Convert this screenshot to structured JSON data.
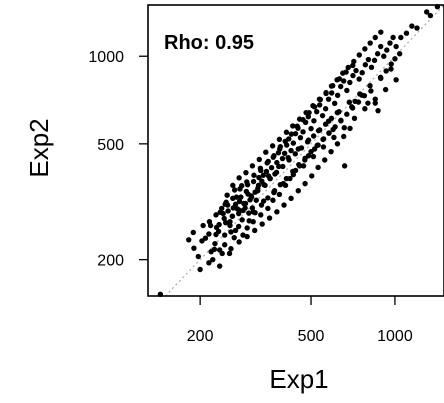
{
  "chart_data": {
    "type": "scatter",
    "xlabel": "Exp1",
    "ylabel": "Exp2",
    "x_scale": "log",
    "y_scale": "log",
    "xlim": [
      130,
      1500
    ],
    "ylim": [
      150,
      1500
    ],
    "x_ticks": [
      200,
      500,
      1000
    ],
    "y_ticks": [
      200,
      500,
      1000
    ],
    "x_tick_labels": [
      "200",
      "500",
      "1000"
    ],
    "y_tick_labels": [
      "200",
      "500",
      "1000"
    ],
    "annotation": "Rho: 0.95",
    "reference_line": "identity (y = x), dotted",
    "grid": false,
    "colors": {
      "points": "#000000",
      "reference_line": "#aaaaaa",
      "frame": "#000000"
    },
    "points": [
      [
        144,
        152
      ],
      [
        182,
        234
      ],
      [
        190,
        219
      ],
      [
        197,
        205
      ],
      [
        209,
        237
      ],
      [
        215,
        245
      ],
      [
        218,
        262
      ],
      [
        219,
        213
      ],
      [
        225,
        217
      ],
      [
        226,
        227
      ],
      [
        229,
        258
      ],
      [
        234,
        264
      ],
      [
        236,
        291
      ],
      [
        235,
        216
      ],
      [
        239,
        300
      ],
      [
        244,
        277
      ],
      [
        245,
        243
      ],
      [
        248,
        315
      ],
      [
        251,
        308
      ],
      [
        252,
        294
      ],
      [
        256,
        270
      ],
      [
        258,
        249
      ],
      [
        261,
        282
      ],
      [
        263,
        301
      ],
      [
        266,
        347
      ],
      [
        268,
        252
      ],
      [
        270,
        328
      ],
      [
        272,
        299
      ],
      [
        275,
        288
      ],
      [
        277,
        317
      ],
      [
        280,
        328
      ],
      [
        282,
        359
      ],
      [
        285,
        295
      ],
      [
        287,
        312
      ],
      [
        290,
        301
      ],
      [
        293,
        343
      ],
      [
        296,
        362
      ],
      [
        299,
        289
      ],
      [
        302,
        321
      ],
      [
        305,
        331
      ],
      [
        308,
        301
      ],
      [
        311,
        371
      ],
      [
        315,
        341
      ],
      [
        318,
        320
      ],
      [
        322,
        351
      ],
      [
        325,
        383
      ],
      [
        329,
        412
      ],
      [
        333,
        372
      ],
      [
        337,
        390
      ],
      [
        342,
        360
      ],
      [
        346,
        402
      ],
      [
        351,
        435
      ],
      [
        356,
        380
      ],
      [
        361,
        414
      ],
      [
        366,
        450
      ],
      [
        371,
        394
      ],
      [
        377,
        431
      ],
      [
        382,
        466
      ],
      [
        388,
        489
      ],
      [
        395,
        445
      ],
      [
        402,
        464
      ],
      [
        409,
        495
      ],
      [
        416,
        520
      ],
      [
        424,
        474
      ],
      [
        432,
        503
      ],
      [
        440,
        542
      ],
      [
        449,
        566
      ],
      [
        458,
        525
      ],
      [
        468,
        550
      ],
      [
        478,
        593
      ],
      [
        489,
        620
      ],
      [
        500,
        564
      ],
      [
        512,
        600
      ],
      [
        524,
        645
      ],
      [
        537,
        680
      ],
      [
        550,
        625
      ],
      [
        564,
        660
      ],
      [
        578,
        712
      ],
      [
        593,
        748
      ],
      [
        608,
        689
      ],
      [
        623,
        734
      ],
      [
        639,
        787
      ],
      [
        655,
        822
      ],
      [
        672,
        763
      ],
      [
        689,
        813
      ],
      [
        707,
        858
      ],
      [
        725,
        893
      ],
      [
        744,
        835
      ],
      [
        763,
        878
      ],
      [
        783,
        935
      ],
      [
        803,
        974
      ],
      [
        824,
        916
      ],
      [
        845,
        968
      ],
      [
        867,
        1020
      ],
      [
        889,
        1080
      ],
      [
        912,
        1000
      ],
      [
        935,
        1050
      ],
      [
        960,
        1110
      ],
      [
        985,
        1160
      ],
      [
        1010,
        1080
      ],
      [
        1050,
        1160
      ],
      [
        1100,
        1200
      ],
      [
        1150,
        1270
      ],
      [
        1200,
        1250
      ],
      [
        1300,
        1420
      ],
      [
        1340,
        1380
      ],
      [
        1420,
        1480
      ],
      [
        200,
        185
      ],
      [
        215,
        195
      ],
      [
        235,
        190
      ],
      [
        255,
        210
      ],
      [
        245,
        225
      ],
      [
        265,
        238
      ],
      [
        285,
        243
      ],
      [
        275,
        260
      ],
      [
        295,
        257
      ],
      [
        310,
        270
      ],
      [
        330,
        285
      ],
      [
        350,
        300
      ],
      [
        365,
        320
      ],
      [
        385,
        335
      ],
      [
        370,
        345
      ],
      [
        405,
        360
      ],
      [
        420,
        380
      ],
      [
        440,
        405
      ],
      [
        455,
        420
      ],
      [
        475,
        440
      ],
      [
        490,
        455
      ],
      [
        515,
        480
      ],
      [
        530,
        495
      ],
      [
        555,
        520
      ],
      [
        580,
        545
      ],
      [
        600,
        560
      ],
      [
        640,
        600
      ],
      [
        660,
        420
      ],
      [
        700,
        670
      ],
      [
        720,
        700
      ],
      [
        760,
        735
      ],
      [
        800,
        690
      ],
      [
        820,
        760
      ],
      [
        850,
        690
      ],
      [
        870,
        650
      ],
      [
        890,
        840
      ],
      [
        930,
        890
      ],
      [
        970,
        940
      ],
      [
        1000,
        980
      ],
      [
        1040,
        1020
      ],
      [
        205,
        262
      ],
      [
        228,
        285
      ],
      [
        246,
        310
      ],
      [
        262,
        325
      ],
      [
        278,
        350
      ],
      [
        294,
        370
      ],
      [
        312,
        390
      ],
      [
        330,
        405
      ],
      [
        348,
        430
      ],
      [
        368,
        455
      ],
      [
        386,
        480
      ],
      [
        404,
        510
      ],
      [
        425,
        540
      ],
      [
        446,
        575
      ],
      [
        468,
        605
      ],
      [
        492,
        640
      ],
      [
        515,
        670
      ],
      [
        540,
        710
      ],
      [
        566,
        745
      ],
      [
        592,
        790
      ],
      [
        620,
        830
      ],
      [
        650,
        875
      ],
      [
        680,
        915
      ],
      [
        712,
        960
      ],
      [
        745,
        1010
      ],
      [
        780,
        1060
      ],
      [
        815,
        1110
      ],
      [
        850,
        1160
      ],
      [
        890,
        1210
      ],
      [
        222,
        200
      ],
      [
        240,
        210
      ],
      [
        258,
        218
      ],
      [
        276,
        230
      ],
      [
        295,
        240
      ],
      [
        314,
        252
      ],
      [
        334,
        265
      ],
      [
        355,
        278
      ],
      [
        377,
        292
      ],
      [
        400,
        308
      ],
      [
        424,
        325
      ],
      [
        450,
        345
      ],
      [
        476,
        365
      ],
      [
        503,
        388
      ],
      [
        530,
        415
      ],
      [
        560,
        440
      ],
      [
        590,
        470
      ],
      [
        622,
        500
      ],
      [
        655,
        530
      ],
      [
        690,
        565
      ],
      [
        250,
        333
      ],
      [
        262,
        360
      ],
      [
        276,
        382
      ],
      [
        292,
        398
      ],
      [
        308,
        420
      ],
      [
        326,
        442
      ],
      [
        344,
        468
      ],
      [
        364,
        492
      ],
      [
        385,
        518
      ],
      [
        408,
        548
      ],
      [
        430,
        576
      ],
      [
        455,
        608
      ],
      [
        480,
        640
      ],
      [
        508,
        676
      ],
      [
        536,
        712
      ],
      [
        566,
        750
      ],
      [
        598,
        792
      ],
      [
        632,
        836
      ],
      [
        668,
        882
      ],
      [
        706,
        930
      ],
      [
        300,
        272
      ],
      [
        315,
        290
      ],
      [
        332,
        308
      ],
      [
        350,
        326
      ],
      [
        368,
        342
      ],
      [
        388,
        362
      ],
      [
        408,
        380
      ],
      [
        430,
        402
      ],
      [
        452,
        424
      ],
      [
        476,
        446
      ],
      [
        500,
        470
      ],
      [
        526,
        494
      ],
      [
        552,
        518
      ],
      [
        580,
        544
      ],
      [
        610,
        572
      ],
      [
        640,
        602
      ],
      [
        672,
        632
      ],
      [
        705,
        664
      ],
      [
        740,
        696
      ],
      [
        777,
        732
      ],
      [
        233,
        250
      ],
      [
        247,
        268
      ],
      [
        261,
        282
      ],
      [
        276,
        296
      ],
      [
        291,
        312
      ],
      [
        306,
        328
      ],
      [
        322,
        345
      ],
      [
        339,
        362
      ],
      [
        357,
        380
      ],
      [
        376,
        399
      ],
      [
        396,
        418
      ],
      [
        417,
        440
      ],
      [
        439,
        462
      ],
      [
        462,
        484
      ],
      [
        486,
        508
      ],
      [
        511,
        532
      ],
      [
        537,
        558
      ],
      [
        564,
        584
      ],
      [
        592,
        612
      ],
      [
        621,
        640
      ],
      [
        189,
        248
      ],
      [
        203,
        232
      ],
      [
        216,
        270
      ],
      [
        228,
        244
      ],
      [
        242,
        288
      ],
      [
        256,
        262
      ],
      [
        268,
        310
      ],
      [
        283,
        274
      ],
      [
        297,
        336
      ],
      [
        310,
        292
      ],
      [
        324,
        360
      ],
      [
        338,
        318
      ],
      [
        352,
        388
      ],
      [
        368,
        340
      ],
      [
        383,
        418
      ],
      [
        398,
        365
      ],
      [
        414,
        448
      ],
      [
        432,
        392
      ],
      [
        450,
        480
      ],
      [
        470,
        420
      ],
      [
        490,
        515
      ],
      [
        510,
        452
      ],
      [
        532,
        555
      ],
      [
        554,
        488
      ],
      [
        578,
        598
      ],
      [
        604,
        526
      ],
      [
        630,
        645
      ],
      [
        658,
        568
      ],
      [
        686,
        695
      ],
      [
        716,
        612
      ],
      [
        748,
        742
      ],
      [
        780,
        660
      ],
      [
        814,
        792
      ],
      [
        850,
        712
      ],
      [
        888,
        846
      ],
      [
        926,
        768
      ],
      [
        968,
        904
      ],
      [
        1010,
        830
      ]
    ]
  }
}
